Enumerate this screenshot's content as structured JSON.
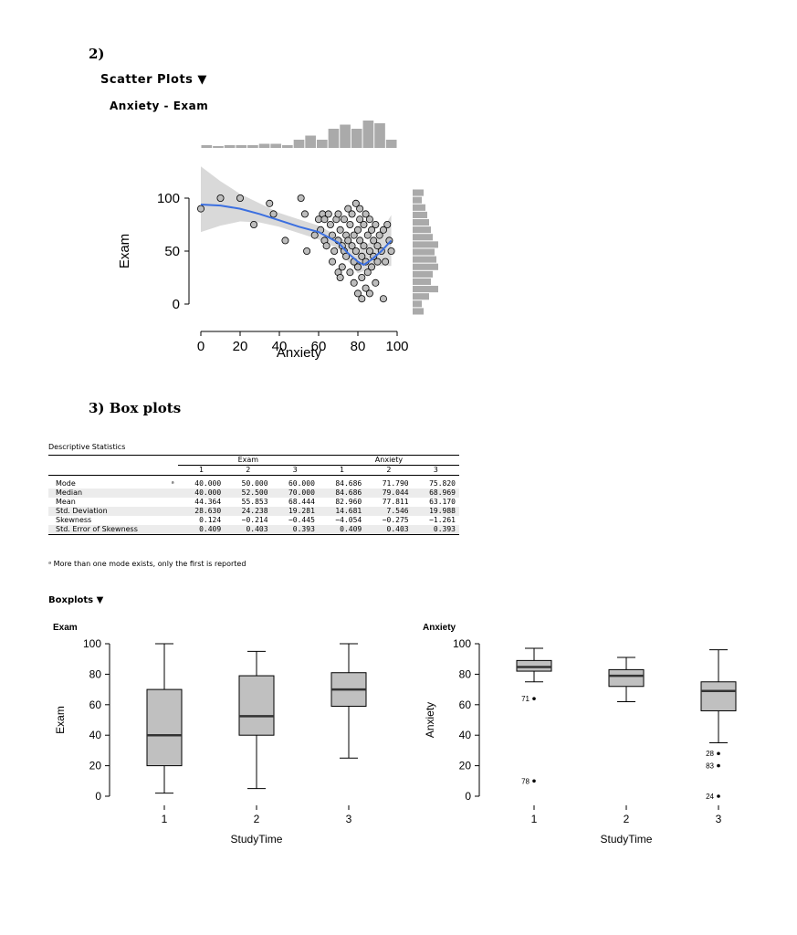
{
  "headings": {
    "section2": "2)",
    "scatter_plots": "Scatter Plots ▼",
    "scatter_subtitle": "Anxiety - Exam",
    "section3": "3) Box plots",
    "boxplots": "Boxplots ▼"
  },
  "descriptives": {
    "title": "Descriptive Statistics",
    "groups": [
      "Exam",
      "Anxiety"
    ],
    "columns": [
      "1",
      "2",
      "3",
      "1",
      "2",
      "3"
    ],
    "rows": [
      {
        "label": "Mode",
        "mark": "ᵃ",
        "values": [
          "40.000",
          "50.000",
          "60.000",
          "84.686",
          "71.790",
          "75.820"
        ]
      },
      {
        "label": "Median",
        "mark": "",
        "values": [
          "40.000",
          "52.500",
          "70.000",
          "84.686",
          "79.044",
          "68.969"
        ]
      },
      {
        "label": "Mean",
        "mark": "",
        "values": [
          "44.364",
          "55.853",
          "68.444",
          "82.960",
          "77.811",
          "63.170"
        ]
      },
      {
        "label": "Std. Deviation",
        "mark": "",
        "values": [
          "28.630",
          "24.238",
          "19.281",
          "14.681",
          "7.546",
          "19.988"
        ]
      },
      {
        "label": "Skewness",
        "mark": "",
        "values": [
          "0.124",
          "−0.214",
          "−0.445",
          "−4.054",
          "−0.275",
          "−1.261"
        ]
      },
      {
        "label": "Std. Error of Skewness",
        "mark": "",
        "values": [
          "0.409",
          "0.403",
          "0.393",
          "0.409",
          "0.403",
          "0.393"
        ]
      }
    ],
    "footnote": "ᵃ More than one mode exists, only the first is reported"
  },
  "colors": {
    "fit_line": "#3b6fe0",
    "band": "#d9d9d9",
    "box_fill": "#c0c0c0",
    "hist": "#aaaaaa",
    "point_fill": "#bdbdbd"
  },
  "chart_data": [
    {
      "type": "scatter",
      "title": "Anxiety - Exam",
      "xlabel": "Anxiety",
      "ylabel": "Exam",
      "xlim": [
        0,
        100
      ],
      "ylim": [
        0,
        100
      ],
      "xticks": [
        "0",
        "20",
        "40",
        "60",
        "80",
        "100"
      ],
      "yticks": [
        "0",
        "50",
        "100"
      ],
      "points": [
        [
          0,
          90
        ],
        [
          10,
          100
        ],
        [
          20,
          100
        ],
        [
          27,
          75
        ],
        [
          35,
          95
        ],
        [
          37,
          85
        ],
        [
          43,
          60
        ],
        [
          51,
          100
        ],
        [
          53,
          85
        ],
        [
          54,
          50
        ],
        [
          58,
          65
        ],
        [
          60,
          80
        ],
        [
          61,
          70
        ],
        [
          62,
          85
        ],
        [
          63,
          60
        ],
        [
          63,
          80
        ],
        [
          64,
          55
        ],
        [
          65,
          85
        ],
        [
          66,
          75
        ],
        [
          67,
          40
        ],
        [
          67,
          65
        ],
        [
          68,
          50
        ],
        [
          69,
          80
        ],
        [
          70,
          30
        ],
        [
          70,
          60
        ],
        [
          70,
          85
        ],
        [
          71,
          25
        ],
        [
          71,
          70
        ],
        [
          72,
          55
        ],
        [
          72,
          35
        ],
        [
          73,
          50
        ],
        [
          73,
          80
        ],
        [
          74,
          65
        ],
        [
          74,
          45
        ],
        [
          75,
          90
        ],
        [
          75,
          60
        ],
        [
          76,
          75
        ],
        [
          76,
          30
        ],
        [
          77,
          55
        ],
        [
          77,
          85
        ],
        [
          78,
          40
        ],
        [
          78,
          65
        ],
        [
          78,
          20
        ],
        [
          79,
          95
        ],
        [
          79,
          50
        ],
        [
          80,
          70
        ],
        [
          80,
          10
        ],
        [
          80,
          35
        ],
        [
          81,
          80
        ],
        [
          81,
          60
        ],
        [
          81,
          90
        ],
        [
          82,
          45
        ],
        [
          82,
          25
        ],
        [
          82,
          5
        ],
        [
          83,
          75
        ],
        [
          83,
          55
        ],
        [
          84,
          85
        ],
        [
          84,
          40
        ],
        [
          84,
          15
        ],
        [
          85,
          65
        ],
        [
          85,
          30
        ],
        [
          86,
          50
        ],
        [
          86,
          80
        ],
        [
          86,
          10
        ],
        [
          87,
          35
        ],
        [
          87,
          70
        ],
        [
          88,
          60
        ],
        [
          88,
          45
        ],
        [
          89,
          20
        ],
        [
          89,
          75
        ],
        [
          90,
          55
        ],
        [
          90,
          40
        ],
        [
          91,
          65
        ],
        [
          92,
          50
        ],
        [
          93,
          70
        ],
        [
          93,
          5
        ],
        [
          94,
          40
        ],
        [
          95,
          75
        ],
        [
          96,
          60
        ],
        [
          97,
          50
        ]
      ],
      "fit": [
        [
          0,
          94
        ],
        [
          10,
          93
        ],
        [
          20,
          90
        ],
        [
          30,
          85
        ],
        [
          40,
          79
        ],
        [
          50,
          73
        ],
        [
          60,
          68
        ],
        [
          70,
          58
        ],
        [
          75,
          48
        ],
        [
          80,
          40
        ],
        [
          83,
          37
        ],
        [
          87,
          42
        ],
        [
          92,
          50
        ],
        [
          97,
          60
        ]
      ],
      "band_upper": [
        [
          0,
          130
        ],
        [
          10,
          116
        ],
        [
          20,
          104
        ],
        [
          30,
          95
        ],
        [
          40,
          86
        ],
        [
          50,
          80
        ],
        [
          60,
          74
        ],
        [
          70,
          64
        ],
        [
          80,
          52
        ],
        [
          90,
          62
        ],
        [
          97,
          84
        ]
      ],
      "band_lower": [
        [
          0,
          68
        ],
        [
          10,
          74
        ],
        [
          20,
          78
        ],
        [
          30,
          77
        ],
        [
          40,
          73
        ],
        [
          50,
          67
        ],
        [
          60,
          61
        ],
        [
          70,
          52
        ],
        [
          80,
          29
        ],
        [
          90,
          36
        ],
        [
          97,
          36
        ]
      ],
      "x_hist": [
        0.1,
        0.05,
        0.1,
        0.1,
        0.1,
        0.15,
        0.15,
        0.1,
        0.3,
        0.45,
        0.3,
        0.7,
        0.85,
        0.7,
        1.0,
        0.9,
        0.3
      ],
      "y_hist": [
        0.3,
        0.25,
        0.35,
        0.4,
        0.45,
        0.5,
        0.55,
        0.75,
        0.6,
        0.65,
        0.95,
        0.55,
        0.5,
        0.7,
        0.45,
        0.25,
        0.3
      ]
    },
    {
      "type": "box",
      "title": "Exam",
      "xlabel": "StudyTime",
      "ylabel": "Exam",
      "ylim": [
        0,
        100
      ],
      "yticks": [
        "0",
        "20",
        "40",
        "60",
        "80",
        "100"
      ],
      "categories": [
        "1",
        "2",
        "3"
      ],
      "boxes": [
        {
          "min": 2,
          "q1": 20,
          "median": 40,
          "q3": 70,
          "max": 100,
          "outliers": []
        },
        {
          "min": 5,
          "q1": 40,
          "median": 52.5,
          "q3": 79,
          "max": 95,
          "outliers": []
        },
        {
          "min": 25,
          "q1": 59,
          "median": 70,
          "q3": 81,
          "max": 100,
          "outliers": []
        }
      ]
    },
    {
      "type": "box",
      "title": "Anxiety",
      "xlabel": "StudyTime",
      "ylabel": "Anxiety",
      "ylim": [
        0,
        100
      ],
      "yticks": [
        "0",
        "20",
        "40",
        "60",
        "80",
        "100"
      ],
      "categories": [
        "1",
        "2",
        "3"
      ],
      "boxes": [
        {
          "min": 75,
          "q1": 82,
          "median": 84.7,
          "q3": 89,
          "max": 97,
          "outliers": [
            {
              "value": 64,
              "label": "71"
            },
            {
              "value": 10,
              "label": "78"
            }
          ]
        },
        {
          "min": 62,
          "q1": 72,
          "median": 79,
          "q3": 83,
          "max": 91,
          "outliers": []
        },
        {
          "min": 35,
          "q1": 56,
          "median": 69,
          "q3": 75,
          "max": 96,
          "outliers": [
            {
              "value": 28,
              "label": "28"
            },
            {
              "value": 20,
              "label": "83"
            },
            {
              "value": 0,
              "label": "24"
            }
          ]
        }
      ]
    }
  ]
}
